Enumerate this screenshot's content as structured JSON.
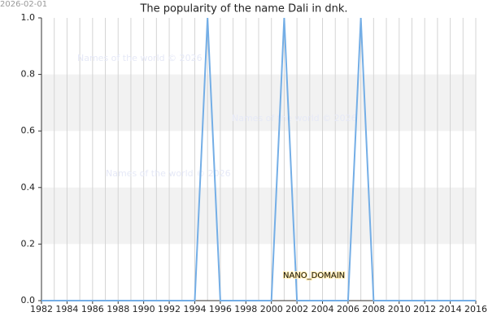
{
  "chart_data": {
    "type": "line",
    "title": "The popularity of the name Dali in dnk.",
    "date_stamp": "2026-02-01",
    "watermarks": [
      "Names of the world © 2026",
      "Names of the world © 2026",
      "Names of the world © 2026"
    ],
    "domain_label": "NANO_DOMAIN",
    "x": [
      1982,
      1983,
      1984,
      1985,
      1986,
      1987,
      1988,
      1989,
      1990,
      1991,
      1992,
      1993,
      1994,
      1995,
      1996,
      1997,
      1998,
      1999,
      2000,
      2001,
      2002,
      2003,
      2004,
      2005,
      2006,
      2007,
      2008,
      2009,
      2010,
      2011,
      2012,
      2013,
      2014,
      2015,
      2016
    ],
    "series": [
      {
        "color": "#74aee6",
        "values": [
          0,
          0,
          0,
          0,
          0,
          0,
          0,
          0,
          0,
          0,
          0,
          0,
          0,
          1,
          0,
          0,
          0,
          0,
          0,
          1,
          0,
          0,
          0,
          0,
          0,
          1,
          0,
          0,
          0,
          0,
          0,
          0,
          0,
          0,
          0
        ]
      }
    ],
    "xlim": [
      1982,
      2016
    ],
    "xticks": [
      1982,
      1984,
      1986,
      1988,
      1990,
      1992,
      1994,
      1996,
      1998,
      2000,
      2002,
      2004,
      2006,
      2008,
      2010,
      2012,
      2014,
      2016
    ],
    "ylim": [
      0,
      1
    ],
    "yticks": [
      {
        "value": 0,
        "label": "0.0"
      },
      0.2,
      0.4,
      0.6,
      0.8,
      {
        "value": 1,
        "label": "1.0"
      }
    ],
    "grid": true
  }
}
